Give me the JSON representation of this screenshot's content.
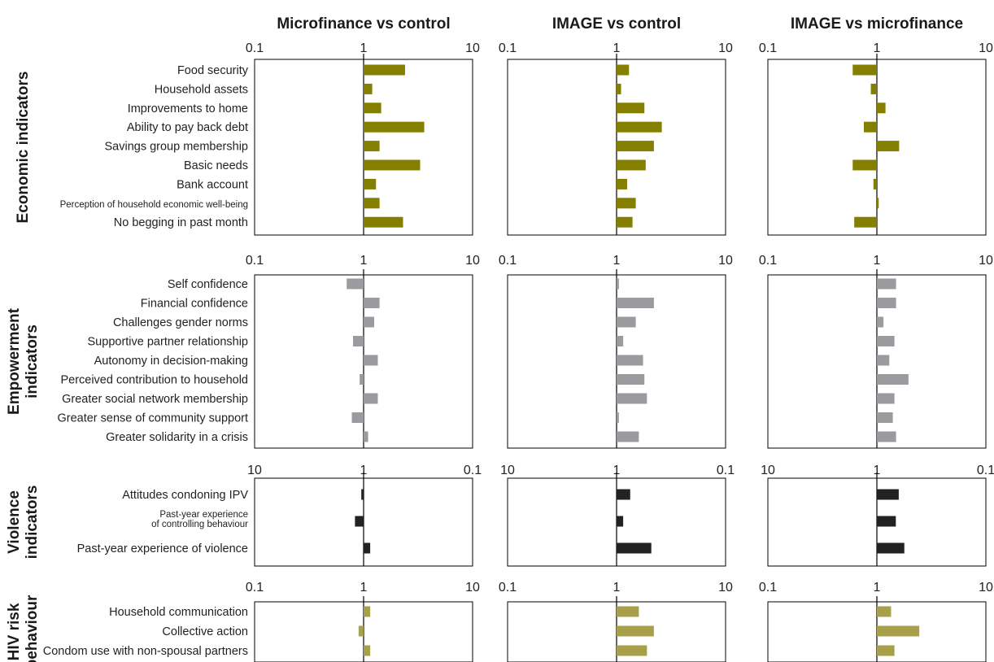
{
  "column_titles": [
    "Microfinance vs control",
    "IMAGE vs control",
    "IMAGE vs microfinance"
  ],
  "colors": {
    "economic": "#857f00",
    "empowerment": "#9a9a9f",
    "violence": "#222222",
    "hiv": "#a89f4a",
    "axis": "#000000"
  },
  "chart_data": [
    {
      "type": "bar",
      "group": "Economic indicators",
      "orientation": "horizontal",
      "x_scale": "log",
      "xlim": [
        0.1,
        10
      ],
      "tick_labels": [
        "0.1",
        "1",
        "10"
      ],
      "categories": [
        "Food security",
        "Household assets",
        "Improvements to home",
        "Ability to pay back debt",
        "Savings group membership",
        "Basic needs",
        "Bank account",
        "Perception of household economic well-being",
        "No begging in past month"
      ],
      "series": [
        {
          "panel": "Microfinance vs control",
          "values": [
            2.4,
            1.2,
            1.45,
            3.6,
            1.4,
            3.3,
            1.3,
            1.4,
            2.3
          ]
        },
        {
          "panel": "IMAGE vs control",
          "values": [
            1.3,
            1.1,
            1.8,
            2.6,
            2.2,
            1.85,
            1.25,
            1.5,
            1.4
          ]
        },
        {
          "panel": "IMAGE vs microfinance",
          "values": [
            0.6,
            0.88,
            1.2,
            0.76,
            1.6,
            0.6,
            0.93,
            1.04,
            0.62
          ]
        }
      ]
    },
    {
      "type": "bar",
      "group": "Empowerment indicators",
      "orientation": "horizontal",
      "x_scale": "log",
      "xlim": [
        0.1,
        10
      ],
      "tick_labels": [
        "0.1",
        "1",
        "10"
      ],
      "categories": [
        "Self confidence",
        "Financial confidence",
        "Challenges gender norms",
        "Supportive partner relationship",
        "Autonomy in decision-making",
        "Perceived contribution to household",
        "Greater social network membership",
        "Greater sense of community support",
        "Greater solidarity in a crisis"
      ],
      "series": [
        {
          "panel": "Microfinance vs control",
          "values": [
            0.7,
            1.4,
            1.25,
            0.8,
            1.35,
            0.92,
            1.35,
            0.78,
            1.1
          ]
        },
        {
          "panel": "IMAGE vs control",
          "values": [
            1.05,
            2.2,
            1.5,
            1.15,
            1.75,
            1.8,
            1.9,
            1.05,
            1.6
          ]
        },
        {
          "panel": "IMAGE vs microfinance",
          "values": [
            1.5,
            1.5,
            1.15,
            1.45,
            1.3,
            1.95,
            1.45,
            1.4,
            1.5
          ]
        }
      ]
    },
    {
      "type": "bar",
      "group": "Violence indicators",
      "orientation": "horizontal",
      "x_scale": "log",
      "reversed": true,
      "xlim": [
        10,
        0.1
      ],
      "tick_labels": [
        "10",
        "1",
        "0.1"
      ],
      "categories": [
        "Attitudes condoning IPV",
        "Past-year experience\nof controlling behaviour",
        "Past-year experience of violence"
      ],
      "series": [
        {
          "panel": "Microfinance vs control",
          "values": [
            1.05,
            1.2,
            0.87
          ]
        },
        {
          "panel": "IMAGE vs control",
          "values": [
            0.75,
            0.87,
            0.48
          ]
        },
        {
          "panel": "IMAGE vs microfinance",
          "values": [
            0.63,
            0.67,
            0.56
          ]
        }
      ]
    },
    {
      "type": "bar",
      "group": "HIV risk behaviour",
      "orientation": "horizontal",
      "x_scale": "log",
      "xlim": [
        0.1,
        10
      ],
      "tick_labels": [
        "0.1",
        "1",
        "10"
      ],
      "categories": [
        "Household communication",
        "Collective action",
        "Condom use with non-spousal partners"
      ],
      "series": [
        {
          "panel": "Microfinance vs control",
          "values": [
            1.15,
            0.9,
            1.15
          ]
        },
        {
          "panel": "IMAGE vs control",
          "values": [
            1.6,
            2.2,
            1.9
          ]
        },
        {
          "panel": "IMAGE vs microfinance",
          "values": [
            1.35,
            2.45,
            1.45
          ]
        }
      ]
    }
  ],
  "group_titles": {
    "economic": [
      "Economic indicators"
    ],
    "empowerment": [
      "Empowerment",
      "indicators"
    ],
    "violence": [
      "Violence",
      "indicators"
    ],
    "hiv": [
      "HIV risk",
      "behaviour"
    ]
  }
}
